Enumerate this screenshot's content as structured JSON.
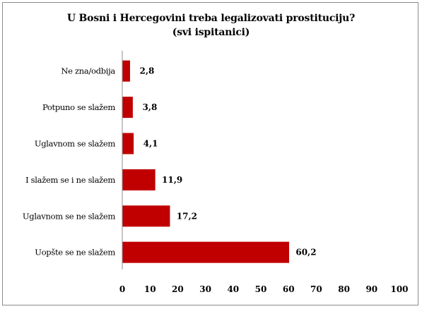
{
  "chart_data": {
    "type": "bar",
    "orientation": "horizontal",
    "title": "U Bosni i Hercegovini treba legalizovati prostituciju?",
    "subtitle": "(svi ispitanici)",
    "categories": [
      "Ne zna/odbija",
      "Potpuno se slažem",
      "Uglavnom se slažem",
      "I slažem se i ne slažem",
      "Uglavnom se ne slažem",
      "Uopšte se ne slažem"
    ],
    "values": [
      2.8,
      3.8,
      4.1,
      11.9,
      17.2,
      60.2
    ],
    "value_labels": [
      "2,8",
      "3,8",
      "4,1",
      "11,9",
      "17,2",
      "60,2"
    ],
    "xlim": [
      0,
      100
    ],
    "xticks": [
      0,
      10,
      20,
      30,
      40,
      50,
      60,
      70,
      80,
      90,
      100
    ],
    "xlabel": "",
    "ylabel": "",
    "grid": false,
    "legend": "none",
    "bar_color": "#c00000"
  }
}
